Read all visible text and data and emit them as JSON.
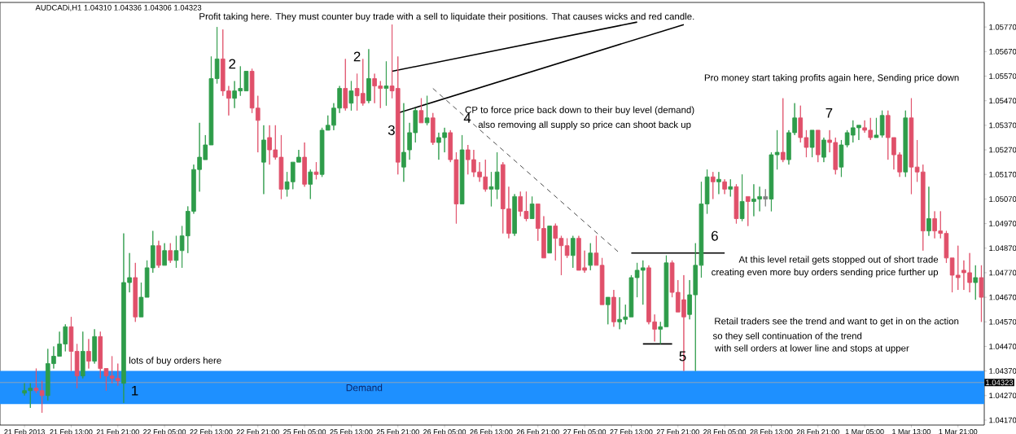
{
  "chart_data": {
    "type": "candlestick",
    "title": "AUDCADi,H1  1.04310 1.04336 1.04306 1.04323",
    "categories": [
      "21 Feb 2013",
      null,
      null,
      null,
      null,
      null,
      null,
      null,
      "21 Feb 13:00",
      null,
      null,
      null,
      null,
      null,
      null,
      null,
      "21 Feb 21:00",
      null,
      null,
      null,
      null,
      null,
      null,
      null,
      "22 Feb 05:00",
      null,
      null,
      null,
      null,
      null,
      null,
      null,
      "22 Feb 13:00",
      null,
      null,
      null,
      null,
      null,
      null,
      null,
      "22 Feb 21:00",
      null,
      null,
      null,
      null,
      null,
      null,
      null,
      "25 Feb 05:00",
      null,
      null,
      null,
      null,
      null,
      null,
      null,
      "25 Feb 13:00",
      null,
      null,
      null,
      null,
      null,
      null,
      null,
      "25 Feb 21:00",
      null,
      null,
      null,
      null,
      null,
      null,
      null,
      "26 Feb 05:00",
      null,
      null,
      null,
      null,
      null,
      null,
      null,
      "26 Feb 13:00",
      null,
      null,
      null,
      null,
      null,
      null,
      null,
      "26 Feb 21:00",
      null,
      null,
      null,
      null,
      null,
      null,
      null,
      "27 Feb 05:00",
      null,
      null,
      null,
      null,
      null,
      null,
      null,
      "27 Feb 13:00",
      null,
      null,
      null,
      null,
      null,
      null,
      null,
      "27 Feb 21:00",
      null,
      null,
      null,
      null,
      null,
      null,
      null,
      "28 Feb 05:00",
      null,
      null,
      null,
      null,
      null,
      null,
      null,
      "28 Feb 13:00",
      null,
      null,
      null,
      null,
      null,
      null,
      null,
      "28 Feb 21:00",
      null,
      null,
      null,
      null,
      null,
      null,
      null,
      "1 Mar 05:00",
      null,
      null,
      null,
      null,
      null,
      null,
      null,
      "1 Mar 13:00",
      null,
      null,
      null,
      null,
      null,
      null,
      null,
      "1 Mar 21:00",
      null,
      null,
      null,
      null
    ],
    "ohlc": [
      [
        1.0428,
        1.0432,
        1.0427,
        1.0429
      ],
      [
        1.0429,
        1.0432,
        1.0422,
        1.043
      ],
      [
        1.043,
        1.0438,
        1.0428,
        1.0429
      ],
      [
        1.0429,
        1.0433,
        1.042,
        1.0427
      ],
      [
        1.0427,
        1.0446,
        1.0425,
        1.044
      ],
      [
        1.044,
        1.0447,
        1.0438,
        1.0443
      ],
      [
        1.0443,
        1.0453,
        1.0443,
        1.0448
      ],
      [
        1.0448,
        1.0456,
        1.0445,
        1.0455
      ],
      [
        1.0455,
        1.0459,
        1.0437,
        1.0445
      ],
      [
        1.0445,
        1.0448,
        1.043,
        1.0435
      ],
      [
        1.0435,
        1.0453,
        1.0434,
        1.0445
      ],
      [
        1.0445,
        1.045,
        1.0438,
        1.0441
      ],
      [
        1.0441,
        1.0454,
        1.044,
        1.0451
      ],
      [
        1.0451,
        1.0453,
        1.0434,
        1.0438
      ],
      [
        1.0438,
        1.0438,
        1.0429,
        1.0435
      ],
      [
        1.0435,
        1.0443,
        1.0432,
        1.0434
      ],
      [
        1.0434,
        1.044,
        1.0431,
        1.0433
      ],
      [
        1.0432,
        1.0493,
        1.0424,
        1.0473
      ],
      [
        1.0473,
        1.0485,
        1.0469,
        1.0475
      ],
      [
        1.0475,
        1.0481,
        1.0457,
        1.0459
      ],
      [
        1.0459,
        1.0473,
        1.0459,
        1.0467
      ],
      [
        1.0467,
        1.0482,
        1.0467,
        1.0479
      ],
      [
        1.0479,
        1.0494,
        1.0477,
        1.0488
      ],
      [
        1.0488,
        1.049,
        1.0479,
        1.048
      ],
      [
        1.048,
        1.0489,
        1.048,
        1.0486
      ],
      [
        1.0486,
        1.0489,
        1.0481,
        1.0482
      ],
      [
        1.0482,
        1.0492,
        1.0479,
        1.0486
      ],
      [
        1.0486,
        1.0496,
        1.0479,
        1.0492
      ],
      [
        1.0492,
        1.0504,
        1.0485,
        1.0502
      ],
      [
        1.0502,
        1.0521,
        1.0501,
        1.0519
      ],
      [
        1.0519,
        1.0538,
        1.051,
        1.0524
      ],
      [
        1.0523,
        1.0533,
        1.0523,
        1.0529
      ],
      [
        1.0529,
        1.0565,
        1.0529,
        1.0556
      ],
      [
        1.0556,
        1.0577,
        1.0554,
        1.0564
      ],
      [
        1.0564,
        1.0576,
        1.0549,
        1.0551
      ],
      [
        1.0551,
        1.0553,
        1.0541,
        1.0548
      ],
      [
        1.0548,
        1.0555,
        1.0544,
        1.0551
      ],
      [
        1.0551,
        1.0561,
        1.0549,
        1.0552
      ],
      [
        1.0551,
        1.0559,
        1.0551,
        1.0559
      ],
      [
        1.0559,
        1.056,
        1.0542,
        1.0544
      ],
      [
        1.0544,
        1.0549,
        1.0526,
        1.0539
      ],
      [
        1.0522,
        1.0537,
        1.0509,
        1.0531
      ],
      [
        1.0532,
        1.0537,
        1.0521,
        1.0527
      ],
      [
        1.0527,
        1.0537,
        1.0523,
        1.0524
      ],
      [
        1.0524,
        1.0533,
        1.0507,
        1.0511
      ],
      [
        1.0511,
        1.0518,
        1.0508,
        1.0514
      ],
      [
        1.0514,
        1.0522,
        1.0511,
        1.0522
      ],
      [
        1.0522,
        1.0527,
        1.0522,
        1.0524
      ],
      [
        1.0524,
        1.053,
        1.0512,
        1.0513
      ],
      [
        1.0513,
        1.0519,
        1.0507,
        1.0518
      ],
      [
        1.0518,
        1.0522,
        1.0515,
        1.0517
      ],
      [
        1.0517,
        1.0536,
        1.0516,
        1.0535
      ],
      [
        1.0535,
        1.0541,
        1.0535,
        1.0537
      ],
      [
        1.0537,
        1.0546,
        1.0535,
        1.0544
      ],
      [
        1.0544,
        1.0553,
        1.0542,
        1.0552
      ],
      [
        1.0552,
        1.0564,
        1.0543,
        1.0544
      ],
      [
        1.0546,
        1.0555,
        1.0543,
        1.0551
      ],
      [
        1.0552,
        1.0558,
        1.0543,
        1.0549
      ],
      [
        1.055,
        1.0564,
        1.0545,
        1.0546
      ],
      [
        1.0547,
        1.0568,
        1.0546,
        1.0556
      ],
      [
        1.0556,
        1.0558,
        1.0546,
        1.0553
      ],
      [
        1.0553,
        1.0555,
        1.0544,
        1.0552
      ],
      [
        1.0552,
        1.0563,
        1.0545,
        1.0553
      ],
      [
        1.0553,
        1.0578,
        1.0548,
        1.0551
      ],
      [
        1.0552,
        1.0565,
        1.0517,
        1.0522
      ],
      [
        1.052,
        1.0546,
        1.0514,
        1.0526
      ],
      [
        1.0527,
        1.0538,
        1.0523,
        1.0534
      ],
      [
        1.0534,
        1.0544,
        1.053,
        1.0543
      ],
      [
        1.0543,
        1.0548,
        1.0538,
        1.0538
      ],
      [
        1.0538,
        1.0549,
        1.0537,
        1.054
      ],
      [
        1.054,
        1.0542,
        1.0529,
        1.053
      ],
      [
        1.053,
        1.0534,
        1.0523,
        1.0532
      ],
      [
        1.0532,
        1.0536,
        1.0526,
        1.0534
      ],
      [
        1.0534,
        1.0535,
        1.0522,
        1.0523
      ],
      [
        1.0523,
        1.0526,
        1.0497,
        1.0505
      ],
      [
        1.0505,
        1.0533,
        1.0505,
        1.0527
      ],
      [
        1.0527,
        1.0529,
        1.0517,
        1.0523
      ],
      [
        1.0523,
        1.0527,
        1.0516,
        1.0518
      ],
      [
        1.0518,
        1.0522,
        1.0514,
        1.0516
      ],
      [
        1.0516,
        1.0523,
        1.051,
        1.0511
      ],
      [
        1.0511,
        1.0518,
        1.0504,
        1.0512
      ],
      [
        1.0511,
        1.0526,
        1.0507,
        1.0518
      ],
      [
        1.0521,
        1.0522,
        1.0493,
        1.0503
      ],
      [
        1.0503,
        1.0512,
        1.0491,
        1.0493
      ],
      [
        1.0493,
        1.0509,
        1.0492,
        1.0508
      ],
      [
        1.0508,
        1.051,
        1.05,
        1.0502
      ],
      [
        1.0502,
        1.051,
        1.0498,
        1.0499
      ],
      [
        1.0499,
        1.0508,
        1.0499,
        1.0505
      ],
      [
        1.0505,
        1.0505,
        1.049,
        1.0495
      ],
      [
        1.0495,
        1.05,
        1.0483,
        1.0483
      ],
      [
        1.0485,
        1.0496,
        1.0485,
        1.0496
      ],
      [
        1.0496,
        1.0497,
        1.0482,
        1.0491
      ],
      [
        1.0491,
        1.0492,
        1.0476,
        1.0488
      ],
      [
        1.0488,
        1.0491,
        1.0483,
        1.0484
      ],
      [
        1.0484,
        1.0492,
        1.0479,
        1.0491
      ],
      [
        1.0491,
        1.0492,
        1.0478,
        1.0478
      ],
      [
        1.0479,
        1.0486,
        1.0477,
        1.0478
      ],
      [
        1.048,
        1.0489,
        1.0478,
        1.0485
      ],
      [
        1.0485,
        1.0492,
        1.048,
        1.048
      ],
      [
        1.048,
        1.0483,
        1.0464,
        1.0464
      ],
      [
        1.0464,
        1.0467,
        1.0456,
        1.0467
      ],
      [
        1.0467,
        1.047,
        1.0455,
        1.0457
      ],
      [
        1.0457,
        1.0467,
        1.0454,
        1.0458
      ],
      [
        1.0458,
        1.0464,
        1.0456,
        1.0459
      ],
      [
        1.0459,
        1.0476,
        1.0459,
        1.0475
      ],
      [
        1.0475,
        1.0481,
        1.0467,
        1.0478
      ],
      [
        1.0478,
        1.0482,
        1.0464,
        1.0479
      ],
      [
        1.0479,
        1.048,
        1.0456,
        1.0457
      ],
      [
        1.0457,
        1.046,
        1.0449,
        1.0454
      ],
      [
        1.0454,
        1.0457,
        1.0448,
        1.0455
      ],
      [
        1.0455,
        1.0484,
        1.0455,
        1.0481
      ],
      [
        1.0481,
        1.0482,
        1.0467,
        1.0469
      ],
      [
        1.0469,
        1.0474,
        1.0461,
        1.0461
      ],
      [
        1.0466,
        1.0476,
        1.0437,
        1.0459
      ],
      [
        1.046,
        1.0474,
        1.0458,
        1.0468
      ],
      [
        1.0468,
        1.0489,
        1.0437,
        1.048
      ],
      [
        1.048,
        1.0514,
        1.0475,
        1.0505
      ],
      [
        1.0505,
        1.0519,
        1.0501,
        1.0516
      ],
      [
        1.0516,
        1.0518,
        1.0507,
        1.0514
      ],
      [
        1.0514,
        1.0518,
        1.0509,
        1.0515
      ],
      [
        1.0514,
        1.0515,
        1.0509,
        1.0511
      ],
      [
        1.0511,
        1.0515,
        1.0508,
        1.0512
      ],
      [
        1.0512,
        1.0513,
        1.0497,
        1.0499
      ],
      [
        1.0499,
        1.0517,
        1.0498,
        1.0506
      ],
      [
        1.0508,
        1.0508,
        1.0496,
        1.0506
      ],
      [
        1.0506,
        1.0513,
        1.05,
        1.0507
      ],
      [
        1.0507,
        1.0512,
        1.0502,
        1.0508
      ],
      [
        1.0507,
        1.0511,
        1.0504,
        1.0508
      ],
      [
        1.0507,
        1.0526,
        1.0502,
        1.0525
      ],
      [
        1.0525,
        1.0535,
        1.0519,
        1.0526
      ],
      [
        1.0526,
        1.0548,
        1.0522,
        1.0523
      ],
      [
        1.0523,
        1.0535,
        1.0521,
        1.0534
      ],
      [
        1.0534,
        1.0546,
        1.0533,
        1.054
      ],
      [
        1.054,
        1.0545,
        1.053,
        1.0532
      ],
      [
        1.0532,
        1.0535,
        1.0524,
        1.0528
      ],
      [
        1.0528,
        1.0535,
        1.0524,
        1.0535
      ],
      [
        1.0535,
        1.0535,
        1.0522,
        1.0525
      ],
      [
        1.0524,
        1.0532,
        1.0522,
        1.0531
      ],
      [
        1.0531,
        1.0535,
        1.0526,
        1.053
      ],
      [
        1.053,
        1.0532,
        1.0517,
        1.0519
      ],
      [
        1.052,
        1.0531,
        1.0516,
        1.0529
      ],
      [
        1.0529,
        1.0535,
        1.0528,
        1.0534
      ],
      [
        1.0533,
        1.0539,
        1.053,
        1.0536
      ],
      [
        1.0536,
        1.0537,
        1.0531,
        1.0537
      ],
      [
        1.0536,
        1.0539,
        1.0534,
        1.0535
      ],
      [
        1.0535,
        1.054,
        1.0531,
        1.0532
      ],
      [
        1.0532,
        1.054,
        1.0532,
        1.0533
      ],
      [
        1.0533,
        1.0543,
        1.0532,
        1.0541
      ],
      [
        1.0541,
        1.0543,
        1.0523,
        1.0532
      ],
      [
        1.0532,
        1.0532,
        1.0519,
        1.0525
      ],
      [
        1.0525,
        1.0526,
        1.0516,
        1.0518
      ],
      [
        1.0518,
        1.0543,
        1.0516,
        1.054
      ],
      [
        1.054,
        1.0548,
        1.0509,
        1.052
      ],
      [
        1.052,
        1.0531,
        1.0514,
        1.0518
      ],
      [
        1.0518,
        1.0521,
        1.0486,
        1.0494
      ],
      [
        1.0494,
        1.0512,
        1.0492,
        1.0499
      ],
      [
        1.0499,
        1.0502,
        1.0491,
        1.0494
      ],
      [
        1.0494,
        1.0502,
        1.0491,
        1.0493
      ],
      [
        1.0493,
        1.0494,
        1.0481,
        1.0483
      ],
      [
        1.0483,
        1.0483,
        1.0469,
        1.0476
      ],
      [
        1.0476,
        1.0488,
        1.047,
        1.0475
      ],
      [
        1.0478,
        1.0482,
        1.047,
        1.0477
      ],
      [
        1.0477,
        1.0485,
        1.0469,
        1.0473
      ],
      [
        1.0473,
        1.048,
        1.0466,
        1.0475
      ],
      [
        1.0475,
        1.048,
        1.0457,
        1.0467
      ]
    ],
    "colors": [
      "#2e9c4a",
      "#2e9c4a",
      "#e0506a",
      "#e0506a",
      "#2e9c4a",
      "#2e9c4a",
      "#2e9c4a",
      "#2e9c4a",
      "#e0506a",
      "#e0506a",
      "#2e9c4a",
      "#e0506a",
      "#2e9c4a",
      "#e0506a",
      "#e0506a",
      "#e0506a",
      "#e0506a",
      "#2e9c4a",
      "#2e9c4a",
      "#e0506a",
      "#2e9c4a",
      "#2e9c4a",
      "#2e9c4a",
      "#e0506a",
      "#2e9c4a",
      "#e0506a",
      "#2e9c4a",
      "#2e9c4a",
      "#2e9c4a",
      "#2e9c4a",
      "#2e9c4a",
      "#2e9c4a",
      "#2e9c4a",
      "#2e9c4a",
      "#e0506a",
      "#e0506a",
      "#2e9c4a",
      "#2e9c4a",
      "#2e9c4a",
      "#e0506a",
      "#e0506a",
      "#2e9c4a",
      "#e0506a",
      "#e0506a",
      "#e0506a",
      "#2e9c4a",
      "#2e9c4a",
      "#2e9c4a",
      "#e0506a",
      "#2e9c4a",
      "#e0506a",
      "#2e9c4a",
      "#2e9c4a",
      "#2e9c4a",
      "#2e9c4a",
      "#e0506a",
      "#2e9c4a",
      "#e0506a",
      "#e0506a",
      "#2e9c4a",
      "#e0506a",
      "#e0506a",
      "#2e9c4a",
      "#e0506a",
      "#e0506a",
      "#2e9c4a",
      "#2e9c4a",
      "#2e9c4a",
      "#e0506a",
      "#2e9c4a",
      "#e0506a",
      "#2e9c4a",
      "#2e9c4a",
      "#e0506a",
      "#e0506a",
      "#2e9c4a",
      "#e0506a",
      "#e0506a",
      "#e0506a",
      "#e0506a",
      "#2e9c4a",
      "#2e9c4a",
      "#e0506a",
      "#e0506a",
      "#2e9c4a",
      "#e0506a",
      "#e0506a",
      "#2e9c4a",
      "#e0506a",
      "#e0506a",
      "#2e9c4a",
      "#e0506a",
      "#e0506a",
      "#e0506a",
      "#2e9c4a",
      "#e0506a",
      "#e0506a",
      "#2e9c4a",
      "#e0506a",
      "#e0506a",
      "#2e9c4a",
      "#e0506a",
      "#2e9c4a",
      "#2e9c4a",
      "#2e9c4a",
      "#2e9c4a",
      "#2e9c4a",
      "#e0506a",
      "#e0506a",
      "#2e9c4a",
      "#2e9c4a",
      "#e0506a",
      "#e0506a",
      "#e0506a",
      "#2e9c4a",
      "#2e9c4a",
      "#2e9c4a",
      "#2e9c4a",
      "#e0506a",
      "#2e9c4a",
      "#e0506a",
      "#2e9c4a",
      "#e0506a",
      "#2e9c4a",
      "#e0506a",
      "#2e9c4a",
      "#2e9c4a",
      "#808080",
      "#2e9c4a",
      "#2e9c4a",
      "#e0506a",
      "#2e9c4a",
      "#2e9c4a",
      "#e0506a",
      "#e0506a",
      "#2e9c4a",
      "#e0506a",
      "#2e9c4a",
      "#e0506a",
      "#e0506a",
      "#2e9c4a",
      "#2e9c4a",
      "#2e9c4a",
      "#2e9c4a",
      "#e0506a",
      "#e0506a",
      "#2e9c4a",
      "#2e9c4a",
      "#e0506a",
      "#e0506a",
      "#e0506a",
      "#2e9c4a",
      "#e0506a",
      "#e0506a",
      "#e0506a",
      "#2e9c4a",
      "#e0506a",
      "#e0506a",
      "#e0506a",
      "#e0506a",
      "#e0506a",
      "#e0506a",
      "#e0506a",
      "#2e9c4a",
      "#e0506a"
    ],
    "series": [
      {
        "type": "line",
        "color": "#000000",
        "values": [
          null,
          null,
          null,
          null,
          null,
          null,
          null,
          null,
          null,
          null,
          null,
          null,
          null,
          null,
          null,
          null,
          null,
          null,
          null,
          null,
          null,
          null,
          null,
          null,
          null,
          null,
          null,
          null,
          null,
          null,
          null,
          null,
          null,
          null,
          null,
          null,
          null,
          null,
          null,
          null,
          null,
          null,
          null,
          null,
          null,
          null,
          null,
          null,
          null,
          null,
          null,
          null,
          null,
          null,
          null,
          null,
          null,
          null,
          null,
          null,
          null,
          null,
          null,
          1.0559,
          null,
          null,
          null,
          null,
          null,
          null,
          null,
          null,
          null,
          null,
          null,
          null,
          null,
          null,
          null,
          null,
          null,
          null,
          null,
          null,
          null,
          null,
          null,
          null,
          null,
          null,
          null,
          null,
          null,
          null,
          null,
          null,
          null,
          null,
          null,
          null,
          null,
          null,
          null,
          null,
          null,
          1.0579,
          null,
          null,
          null,
          null,
          null,
          null,
          null,
          null,
          null,
          null,
          null,
          null,
          null,
          null,
          null,
          null,
          null,
          null,
          null,
          null,
          null,
          null,
          null,
          null,
          null,
          null,
          null,
          null,
          null,
          null,
          null,
          null,
          null,
          null,
          null,
          null,
          null,
          null,
          null,
          null,
          null,
          null,
          null,
          null,
          null,
          null,
          null,
          null,
          null,
          null,
          null,
          null,
          null,
          null,
          null,
          null,
          null,
          null,
          null
        ]
      },
      {
        "type": "line",
        "color": "#000000",
        "values": [
          null,
          null,
          null,
          null,
          null,
          null,
          null,
          null,
          null,
          null,
          null,
          null,
          null,
          null,
          null,
          null,
          null,
          null,
          null,
          null,
          null,
          null,
          null,
          null,
          null,
          null,
          null,
          null,
          null,
          null,
          null,
          null,
          null,
          null,
          null,
          null,
          null,
          null,
          null,
          null,
          null,
          null,
          null,
          null,
          null,
          null,
          null,
          null,
          null,
          null,
          null,
          null,
          null,
          null,
          null,
          null,
          null,
          null,
          null,
          null,
          null,
          null,
          null,
          null,
          1.0542,
          null,
          null,
          null,
          null,
          null,
          null,
          null,
          null,
          null,
          null,
          null,
          null,
          null,
          null,
          null,
          null,
          null,
          null,
          null,
          null,
          null,
          null,
          null,
          null,
          null,
          null,
          null,
          null,
          null,
          null,
          null,
          null,
          null,
          null,
          null,
          null,
          null,
          null,
          null,
          null,
          null,
          null,
          null,
          null,
          null,
          null,
          null,
          null,
          1.0578,
          null,
          null,
          null,
          null,
          null,
          null,
          null,
          null,
          null,
          null,
          null,
          null,
          null,
          null,
          null,
          null,
          null,
          null,
          null,
          null,
          null,
          null,
          null,
          null,
          null,
          null,
          null,
          null,
          null,
          null,
          null,
          null,
          null,
          null,
          null,
          null,
          null,
          null,
          null,
          null,
          null,
          null,
          null,
          null,
          null,
          null,
          null,
          null,
          null,
          null,
          null
        ]
      },
      {
        "type": "line",
        "color": "#000000",
        "line_style": "dashed",
        "values": [
          null,
          null,
          null,
          null,
          null,
          null,
          null,
          null,
          null,
          null,
          null,
          null,
          null,
          null,
          null,
          null,
          null,
          null,
          null,
          null,
          null,
          null,
          null,
          null,
          null,
          null,
          null,
          null,
          null,
          null,
          null,
          null,
          null,
          null,
          null,
          null,
          null,
          null,
          null,
          null,
          null,
          null,
          null,
          null,
          null,
          null,
          null,
          null,
          null,
          null,
          null,
          null,
          null,
          null,
          null,
          null,
          null,
          null,
          null,
          null,
          null,
          null,
          null,
          null,
          null,
          null,
          null,
          null,
          null,
          null,
          1.0552,
          null,
          null,
          null,
          null,
          null,
          null,
          null,
          null,
          null,
          null,
          null,
          null,
          null,
          null,
          null,
          null,
          null,
          null,
          null,
          null,
          null,
          null,
          null,
          null,
          null,
          null,
          null,
          null,
          null,
          null,
          null,
          1.0485,
          null,
          null,
          null,
          null,
          null,
          null,
          null,
          null,
          null,
          null,
          null,
          null,
          null,
          null,
          null,
          null,
          null,
          null,
          null,
          null,
          null,
          null,
          null,
          null,
          null,
          null,
          null,
          null,
          null,
          null,
          null,
          null,
          null,
          null,
          null,
          null,
          null,
          null,
          null,
          null,
          null,
          null,
          null,
          null,
          null,
          null,
          null,
          null,
          null,
          null,
          null,
          null,
          null,
          null,
          null,
          null,
          null,
          null,
          null,
          null,
          null,
          null
        ]
      },
      {
        "type": "line",
        "color": "#000000",
        "values": [
          null,
          null,
          null,
          null,
          null,
          null,
          null,
          null,
          null,
          null,
          null,
          null,
          null,
          null,
          null,
          null,
          null,
          null,
          null,
          null,
          null,
          null,
          null,
          null,
          null,
          null,
          null,
          null,
          null,
          null,
          null,
          null,
          null,
          null,
          null,
          null,
          null,
          null,
          null,
          null,
          null,
          null,
          null,
          null,
          null,
          null,
          null,
          null,
          null,
          null,
          null,
          null,
          null,
          null,
          null,
          null,
          null,
          null,
          null,
          null,
          null,
          null,
          null,
          null,
          null,
          null,
          null,
          null,
          null,
          null,
          null,
          null,
          null,
          null,
          null,
          null,
          null,
          null,
          null,
          null,
          null,
          null,
          null,
          null,
          null,
          null,
          null,
          null,
          null,
          null,
          null,
          null,
          null,
          null,
          null,
          null,
          null,
          null,
          null,
          null,
          null,
          null,
          null,
          null,
          1.0485,
          null,
          null,
          null,
          null,
          null,
          null,
          null,
          null,
          null,
          null,
          null,
          null,
          null,
          null,
          null,
          1.0485,
          null,
          null,
          null,
          null,
          null,
          null,
          null,
          null,
          null,
          null,
          null,
          null,
          null,
          null,
          null,
          null,
          null,
          null,
          null,
          null,
          null,
          null,
          null,
          null,
          null,
          null,
          null,
          null,
          null,
          null,
          null,
          null,
          null,
          null,
          null,
          null,
          null,
          null,
          null,
          null,
          null,
          null,
          null,
          null
        ]
      },
      {
        "type": "line",
        "color": "#000000",
        "values": [
          null,
          null,
          null,
          null,
          null,
          null,
          null,
          null,
          null,
          null,
          null,
          null,
          null,
          null,
          null,
          null,
          null,
          null,
          null,
          null,
          null,
          null,
          null,
          null,
          null,
          null,
          null,
          null,
          null,
          null,
          null,
          null,
          null,
          null,
          null,
          null,
          null,
          null,
          null,
          null,
          null,
          null,
          null,
          null,
          null,
          null,
          null,
          null,
          null,
          null,
          null,
          null,
          null,
          null,
          null,
          null,
          null,
          null,
          null,
          null,
          null,
          null,
          null,
          null,
          null,
          null,
          null,
          null,
          null,
          null,
          null,
          null,
          null,
          null,
          null,
          null,
          null,
          null,
          null,
          null,
          null,
          null,
          null,
          null,
          null,
          null,
          null,
          null,
          null,
          null,
          null,
          null,
          null,
          null,
          null,
          null,
          null,
          null,
          null,
          null,
          null,
          null,
          null,
          null,
          null,
          null,
          1.0448,
          null,
          null,
          null,
          null,
          1.0448,
          null,
          null,
          null,
          null,
          null,
          null,
          null,
          null,
          null,
          null,
          null,
          null,
          null,
          null,
          null,
          null,
          null,
          null,
          null,
          null,
          null,
          null,
          null,
          null,
          null,
          null,
          null,
          null,
          null,
          null,
          null,
          null,
          null,
          null,
          null,
          null,
          null,
          null,
          null,
          null,
          null,
          null,
          null,
          null,
          null,
          null,
          null,
          null,
          null,
          null,
          null,
          null,
          null
        ]
      }
    ],
    "ylim": [
      1.0415,
      1.0587
    ],
    "yticks": [
      {
        "value": 1.0417,
        "label": "1.04170"
      },
      {
        "value": 1.0427,
        "label": "1.04270"
      },
      {
        "value": 1.0437,
        "label": "1.04370"
      },
      {
        "value": 1.0447,
        "label": "1.04470"
      },
      {
        "value": 1.0457,
        "label": "1.04570"
      },
      {
        "value": 1.0467,
        "label": "1.04670"
      },
      {
        "value": 1.0477,
        "label": "1.04770"
      },
      {
        "value": 1.0487,
        "label": "1.04870"
      },
      {
        "value": 1.0497,
        "label": "1.04970"
      },
      {
        "value": 1.0507,
        "label": "1.05070"
      },
      {
        "value": 1.0517,
        "label": "1.05170"
      },
      {
        "value": 1.0527,
        "label": "1.05270"
      },
      {
        "value": 1.0537,
        "label": "1.05370"
      },
      {
        "value": 1.0547,
        "label": "1.05470"
      },
      {
        "value": 1.0557,
        "label": "1.05570"
      },
      {
        "value": 1.0567,
        "label": "1.05670"
      },
      {
        "value": 1.0577,
        "label": "1.05770"
      }
    ],
    "ref_lines": [
      {
        "axis": "y",
        "value": 1.04323,
        "label": "1.04323",
        "color": "#a8a8a8"
      }
    ],
    "bands": [
      {
        "axis": "y",
        "from": 1.04235,
        "to": 1.0437,
        "label": "Demand",
        "color": "#1e90ff"
      }
    ],
    "annotations": [
      "Profit taking here. They must counter buy trade with a sell to  liquidate their positions. That causes wicks and red candle.",
      "2",
      "2",
      "3",
      "4",
      "CP to force price back down to their buy level (demand)",
      "also removing all supply so price can shoot back up",
      "Pro money start taking profits again here, Sending price down",
      "7",
      "6",
      "At this level retail gets stopped out of short trade",
      "creating even more buy orders sending price further up",
      "Retail traders see the trend and want to get in on the action",
      "so they sell continuation of the trend",
      "with sell orders at lower line and stops at upper",
      "5",
      "lots of buy orders here",
      "1"
    ]
  }
}
